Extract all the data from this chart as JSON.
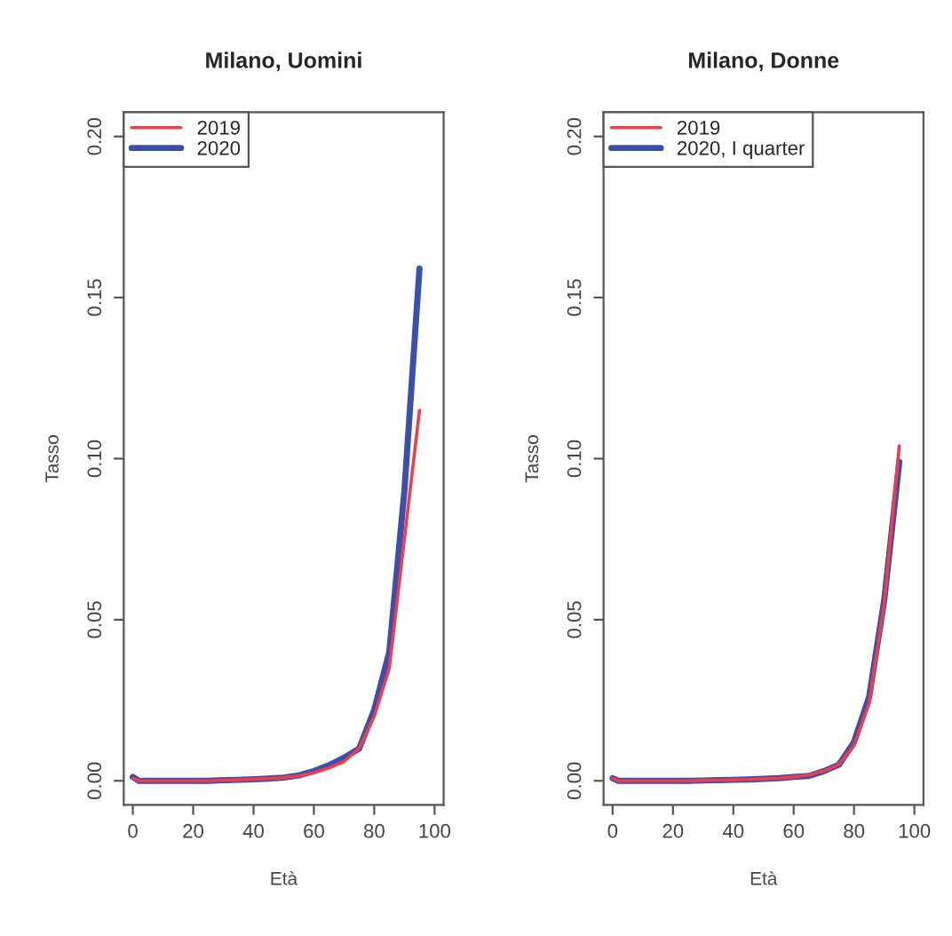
{
  "chart_data": [
    {
      "type": "line",
      "title": "Milano, Uomini",
      "xlabel": "Età",
      "ylabel": "Tasso",
      "x": [
        0,
        2,
        5,
        10,
        15,
        20,
        25,
        30,
        35,
        40,
        45,
        50,
        55,
        60,
        65,
        70,
        75,
        80,
        85,
        90,
        95
      ],
      "xlim": [
        -3,
        103
      ],
      "ylim": [
        -0.0075,
        0.2075
      ],
      "xticks": [
        0,
        20,
        40,
        60,
        80,
        100
      ],
      "yticks": [
        {
          "value": 0,
          "label": "0.00"
        },
        {
          "value": 0.05,
          "label": "0.05"
        },
        {
          "value": 0.1,
          "label": "0.10"
        },
        {
          "value": 0.15,
          "label": "0.15"
        },
        {
          "value": 0.2,
          "label": "0.20"
        }
      ],
      "legend": "top left",
      "grid": false,
      "marker": "none",
      "line_style": "solid",
      "series": [
        {
          "name": "2019",
          "color": "#f23c4a",
          "values": [
            0.0008,
            0,
            0,
            0,
            0,
            0,
            0,
            0.0002,
            0.0003,
            0.0005,
            0.0007,
            0.001,
            0.0015,
            0.0025,
            0.004,
            0.006,
            0.01,
            0.02,
            0.035,
            0.075,
            0.115
          ]
        },
        {
          "name": "2020",
          "color": "#3a4fae",
          "values": [
            0.0012,
            0,
            0,
            0,
            0,
            0,
            0,
            0.0002,
            0.0003,
            0.0005,
            0.0007,
            0.001,
            0.0017,
            0.003,
            0.0048,
            0.0072,
            0.01,
            0.022,
            0.04,
            0.09,
            0.159
          ]
        }
      ]
    },
    {
      "type": "line",
      "title": "Milano, Donne",
      "xlabel": "Età",
      "ylabel": "Tasso",
      "x": [
        0,
        2,
        5,
        10,
        15,
        20,
        25,
        30,
        35,
        40,
        45,
        50,
        55,
        60,
        65,
        70,
        75,
        80,
        85,
        90,
        95
      ],
      "xlim": [
        -3,
        103
      ],
      "ylim": [
        -0.0075,
        0.2075
      ],
      "xticks": [
        0,
        20,
        40,
        60,
        80,
        100
      ],
      "yticks": [
        {
          "value": 0,
          "label": "0.00"
        },
        {
          "value": 0.05,
          "label": "0.05"
        },
        {
          "value": 0.1,
          "label": "0.10"
        },
        {
          "value": 0.15,
          "label": "0.15"
        },
        {
          "value": 0.2,
          "label": "0.20"
        }
      ],
      "legend": "top left",
      "grid": false,
      "marker": "none",
      "line_style": "solid",
      "series": [
        {
          "name": "2019",
          "color": "#f23c4a",
          "values": [
            0.0008,
            0,
            0,
            0,
            0,
            0,
            0,
            0.0001,
            0.0002,
            0.0003,
            0.0004,
            0.0006,
            0.0008,
            0.0012,
            0.0018,
            0.003,
            0.005,
            0.011,
            0.024,
            0.055,
            0.104
          ]
        },
        {
          "name": "2020, I quarter",
          "color": "#3a4fae",
          "values": [
            0.0008,
            0,
            0,
            0,
            0,
            0,
            0,
            0.0001,
            0.0002,
            0.0003,
            0.0004,
            0.0006,
            0.0008,
            0.0012,
            0.0015,
            0.003,
            0.005,
            0.012,
            0.026,
            0.056,
            0.099
          ]
        }
      ]
    }
  ]
}
